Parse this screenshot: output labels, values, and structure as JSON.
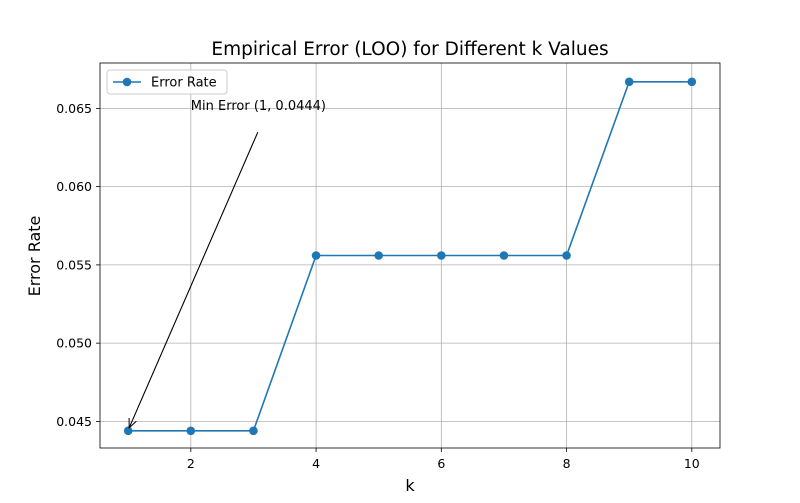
{
  "chart_data": {
    "type": "line",
    "title": "Empirical Error (LOO) for Different k Values",
    "xlabel": "k",
    "ylabel": "Error Rate",
    "xlim": [
      0.55,
      10.45
    ],
    "ylim": [
      0.0433,
      0.0679
    ],
    "x_ticks": [
      2,
      4,
      6,
      8,
      10
    ],
    "x_tick_labels": [
      "2",
      "4",
      "6",
      "8",
      "10"
    ],
    "y_ticks": [
      0.045,
      0.05,
      0.055,
      0.06,
      0.065
    ],
    "y_tick_labels": [
      "0.045",
      "0.050",
      "0.055",
      "0.060",
      "0.065"
    ],
    "grid": true,
    "legend_position": "upper-left",
    "series": [
      {
        "name": "Error Rate",
        "color": "#1f77b4",
        "marker": "circle",
        "x": [
          1,
          2,
          3,
          4,
          5,
          6,
          7,
          8,
          9,
          10
        ],
        "values": [
          0.0444,
          0.0444,
          0.0444,
          0.0556,
          0.0556,
          0.0556,
          0.0556,
          0.0556,
          0.0667,
          0.0667
        ]
      }
    ],
    "annotations": [
      {
        "text": "Min Error (1, 0.0444)",
        "x": 1,
        "y": 0.0444,
        "text_x": 2,
        "text_y": 0.0645
      }
    ]
  }
}
